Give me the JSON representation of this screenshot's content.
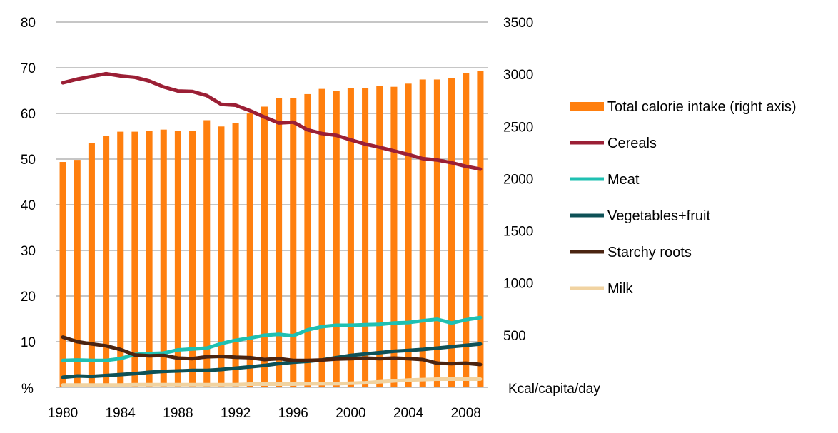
{
  "chart_data": {
    "type": "bar+line",
    "x": [
      1980,
      1981,
      1982,
      1983,
      1984,
      1985,
      1986,
      1987,
      1988,
      1989,
      1990,
      1991,
      1992,
      1993,
      1994,
      1995,
      1996,
      1997,
      1998,
      1999,
      2000,
      2001,
      2002,
      2003,
      2004,
      2005,
      2006,
      2007,
      2008,
      2009
    ],
    "x_tick_labels": [
      "1980",
      "1984",
      "1988",
      "1992",
      "1996",
      "2000",
      "2004",
      "2008"
    ],
    "left_axis": {
      "label": "%",
      "ylim": [
        0,
        80
      ],
      "ticks": [
        "80",
        "70",
        "60",
        "50",
        "40",
        "30",
        "20",
        "10"
      ]
    },
    "right_axis": {
      "label": "Kcal/capita/day",
      "ylim": [
        0,
        3500
      ],
      "ticks": [
        "3500",
        "3000",
        "2500",
        "2000",
        "1500",
        "1000",
        "500"
      ]
    },
    "bar_series": {
      "name": "Total calorie intake (right axis)",
      "color": "#ff7f0e",
      "axis": "right",
      "values": [
        2160,
        2180,
        2340,
        2410,
        2450,
        2450,
        2460,
        2470,
        2460,
        2460,
        2560,
        2500,
        2530,
        2630,
        2690,
        2770,
        2770,
        2810,
        2860,
        2840,
        2870,
        2870,
        2890,
        2880,
        2910,
        2950,
        2950,
        2960,
        3010,
        3030
      ]
    },
    "line_series": [
      {
        "name": "Cereals",
        "color": "#9b1f35",
        "axis": "left",
        "values": [
          66.7,
          67.5,
          68.1,
          68.7,
          68.2,
          67.9,
          67.1,
          65.8,
          64.9,
          64.8,
          63.9,
          62.0,
          61.8,
          60.6,
          59.2,
          57.9,
          58.1,
          56.4,
          55.6,
          55.2,
          54.2,
          53.3,
          52.6,
          51.8,
          51.0,
          50.1,
          49.8,
          49.2,
          48.4,
          47.8
        ]
      },
      {
        "name": "Meat",
        "color": "#1fc0b2",
        "axis": "left",
        "values": [
          5.9,
          6.0,
          5.9,
          5.9,
          6.3,
          7.2,
          7.4,
          7.5,
          8.2,
          8.4,
          8.6,
          9.6,
          10.3,
          10.8,
          11.4,
          11.6,
          11.3,
          12.6,
          13.3,
          13.6,
          13.6,
          13.7,
          13.8,
          14.1,
          14.2,
          14.6,
          14.9,
          14.1,
          14.8,
          15.3
        ]
      },
      {
        "name": "Vegetables+fruit",
        "color": "#0e5157",
        "axis": "left",
        "values": [
          2.2,
          2.5,
          2.4,
          2.6,
          2.8,
          3.0,
          3.3,
          3.5,
          3.6,
          3.7,
          3.7,
          3.9,
          4.2,
          4.5,
          4.8,
          5.2,
          5.5,
          5.7,
          6.0,
          6.5,
          7.0,
          7.3,
          7.6,
          7.9,
          8.1,
          8.3,
          8.6,
          8.9,
          9.2,
          9.5
        ]
      },
      {
        "name": "Starchy roots",
        "color": "#4b2411",
        "axis": "left",
        "values": [
          11.0,
          10.0,
          9.5,
          9.1,
          8.3,
          7.1,
          6.9,
          7.0,
          6.4,
          6.3,
          6.7,
          6.8,
          6.6,
          6.5,
          6.1,
          6.3,
          5.9,
          5.9,
          6.0,
          6.2,
          6.3,
          6.4,
          6.3,
          6.4,
          6.3,
          6.1,
          5.3,
          5.2,
          5.3,
          5.0
        ]
      },
      {
        "name": "Milk",
        "color": "#f1d3a1",
        "axis": "left",
        "values": [
          0.5,
          0.5,
          0.5,
          0.5,
          0.5,
          0.6,
          0.6,
          0.6,
          0.6,
          0.6,
          0.6,
          0.6,
          0.6,
          0.7,
          0.7,
          0.7,
          0.7,
          0.8,
          0.8,
          0.8,
          0.9,
          1.0,
          1.2,
          1.4,
          1.6,
          1.7,
          1.8,
          1.8,
          1.8,
          1.8
        ]
      }
    ],
    "grid": "horizontal",
    "legend_position": "right"
  }
}
